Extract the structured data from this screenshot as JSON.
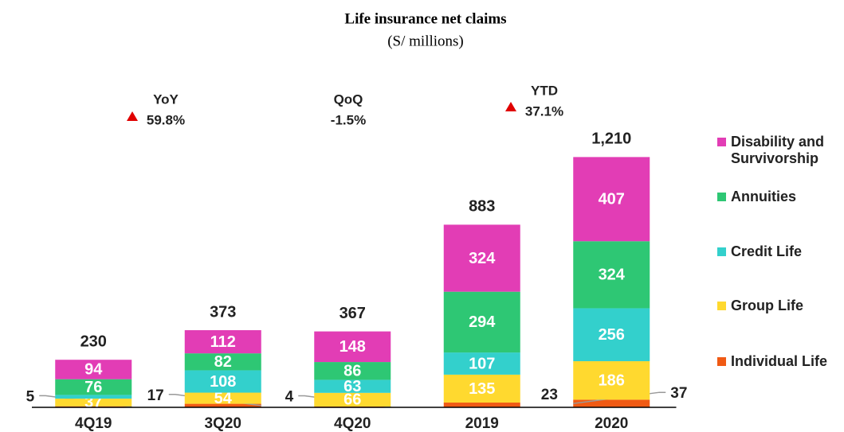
{
  "chart_data": {
    "type": "stacked_bar",
    "title": "Life insurance net claims",
    "subtitle": "(S/ millions)",
    "categories": [
      "4Q19",
      "3Q20",
      "4Q20",
      "2019",
      "2020"
    ],
    "series": [
      {
        "name": "Individual Life",
        "color": "#f05a14",
        "values": [
          5,
          17,
          4,
          23,
          37
        ]
      },
      {
        "name": "Group Life",
        "color": "#ffd92f",
        "values": [
          37,
          54,
          66,
          135,
          186
        ]
      },
      {
        "name": "Credit Life",
        "color": "#33d0cc",
        "values": [
          18,
          108,
          63,
          107,
          256
        ],
        "value_labels": [
          null,
          "108",
          "63",
          "107",
          "256"
        ]
      },
      {
        "name": "Annuities",
        "color": "#2ec774",
        "values": [
          76,
          82,
          86,
          294,
          324
        ]
      },
      {
        "name": "Disability and Survivorship",
        "color": "#e23db5",
        "values": [
          94,
          112,
          148,
          324,
          407
        ]
      }
    ],
    "totals": {
      "values": [
        230,
        373,
        367,
        883,
        1210
      ],
      "value_labels": [
        "230",
        "373",
        "367",
        "883",
        "1,210"
      ]
    },
    "annotations": [
      {
        "label": "YoY",
        "value": "59.8%",
        "direction": "up"
      },
      {
        "label": "QoQ",
        "value": "-1.5%",
        "direction": "none"
      },
      {
        "label": "YTD",
        "value": "37.1%",
        "direction": "up"
      }
    ],
    "ylim": [
      0,
      1300
    ],
    "legend": "right"
  }
}
